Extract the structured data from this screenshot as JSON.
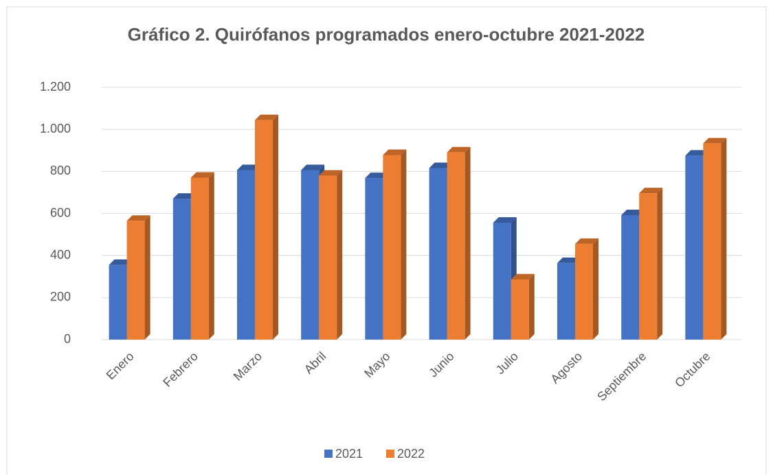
{
  "chart_data": {
    "type": "bar",
    "title": "Gráfico 2. Quirófanos programados enero-octubre 2021-2022",
    "categories": [
      "Enero",
      "Febrero",
      "Marzo",
      "Abril",
      "Mayo",
      "Junio",
      "Julio",
      "Agosto",
      "Septiembre",
      "Octubre"
    ],
    "series": [
      {
        "name": "2021",
        "color": "#4472c4",
        "values": [
          355,
          670,
          806,
          806,
          768,
          816,
          556,
          364,
          592,
          875
        ]
      },
      {
        "name": "2022",
        "color": "#ed7d31",
        "values": [
          565,
          770,
          1044,
          780,
          878,
          890,
          286,
          455,
          696,
          933
        ]
      }
    ],
    "ylim": [
      0,
      1200
    ],
    "yticks": [
      0,
      200,
      400,
      600,
      800,
      {
        "value": 1000,
        "label": "1.000"
      },
      {
        "value": 1200,
        "label": "1.200"
      }
    ],
    "grid": true,
    "legend": "bottom"
  }
}
